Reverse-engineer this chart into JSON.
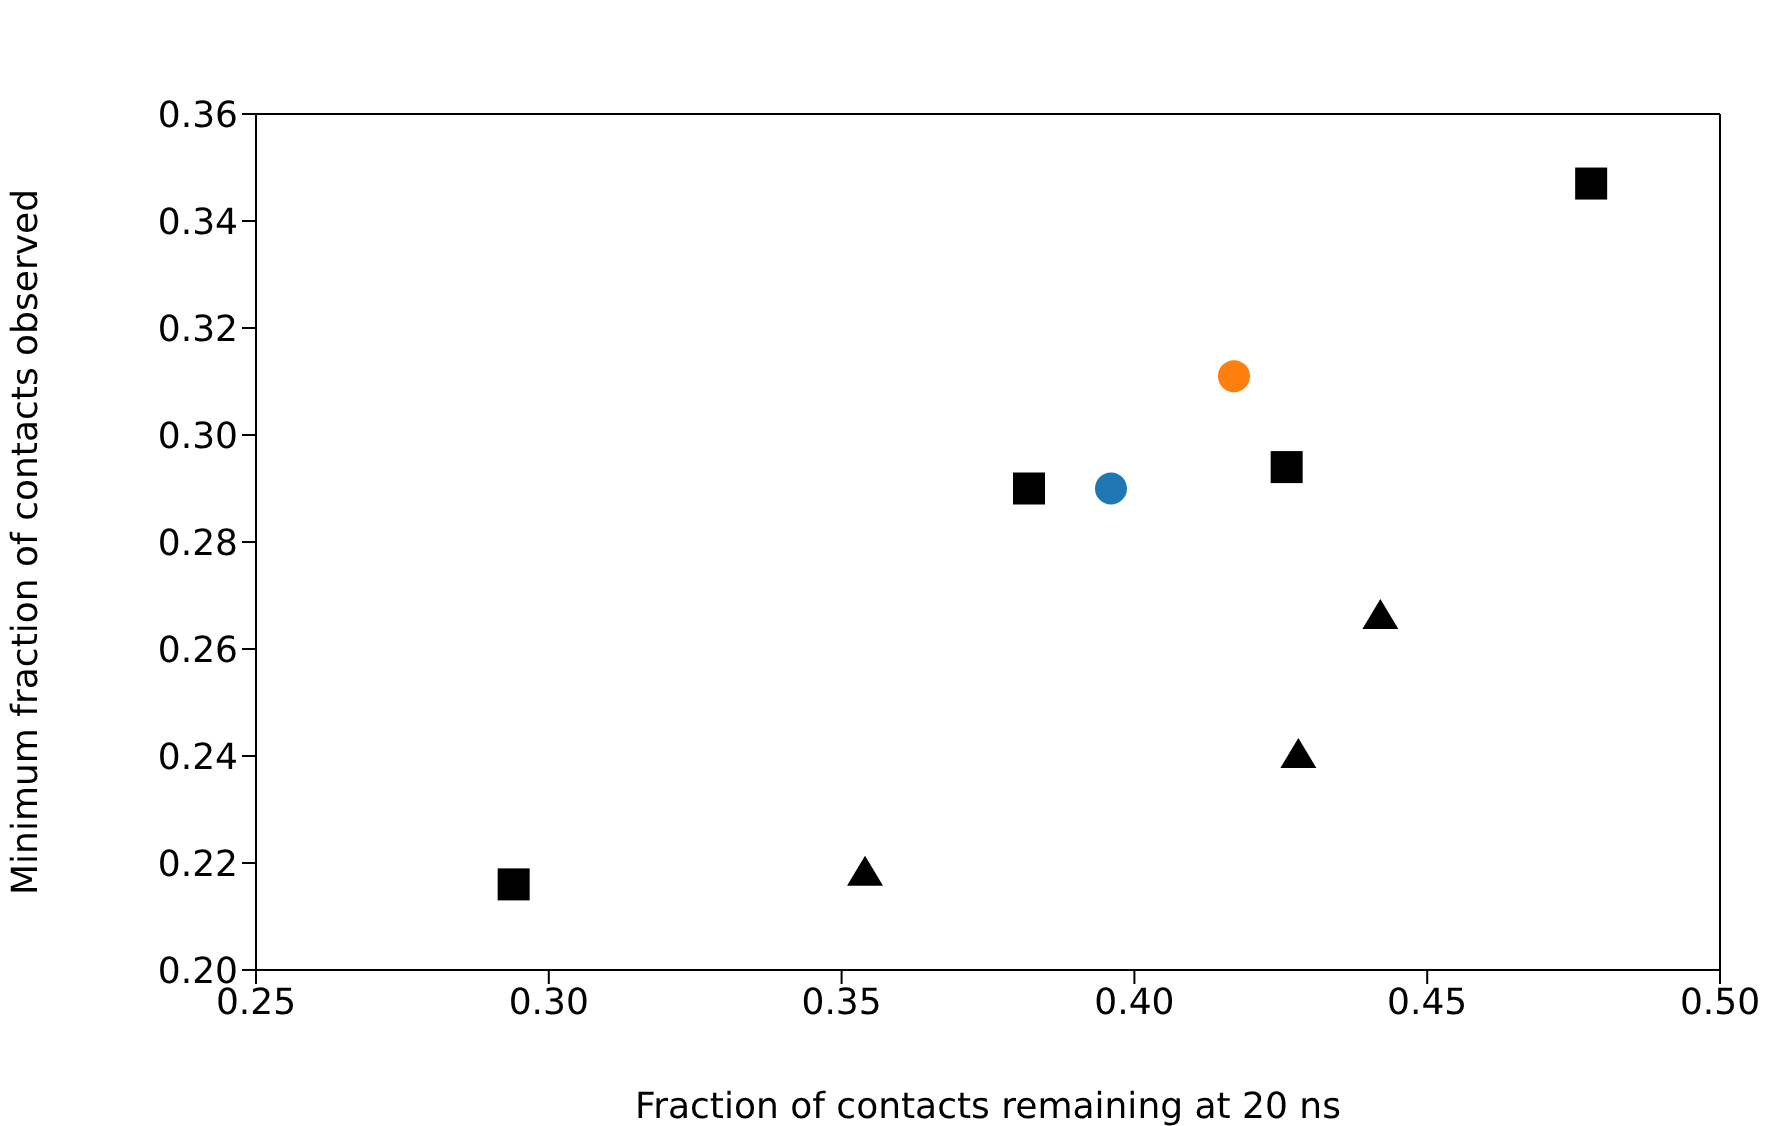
{
  "chart_data": {
    "type": "scatter",
    "xlabel": "Fraction of contacts remaining at 20 ns",
    "ylabel": "Minimum fraction of contacts observed",
    "xlim": [
      0.25,
      0.5
    ],
    "xticks": [
      {
        "value": 0.25,
        "label": "0.25"
      },
      {
        "value": 0.3,
        "label": "0.30"
      },
      {
        "value": 0.35,
        "label": "0.35"
      },
      {
        "value": 0.4,
        "label": "0.40"
      },
      {
        "value": 0.45,
        "label": "0.45"
      },
      {
        "value": 0.5,
        "label": "0.50"
      }
    ],
    "ylim": [
      0.2,
      0.36
    ],
    "yticks": [
      {
        "value": 0.2,
        "label": "0.20"
      },
      {
        "value": 0.22,
        "label": "0.22"
      },
      {
        "value": 0.24,
        "label": "0.24"
      },
      {
        "value": 0.26,
        "label": "0.26"
      },
      {
        "value": 0.28,
        "label": "0.28"
      },
      {
        "value": 0.3,
        "label": "0.30"
      },
      {
        "value": 0.32,
        "label": "0.32"
      },
      {
        "value": 0.34,
        "label": "0.34"
      },
      {
        "value": 0.36,
        "label": "0.36"
      }
    ],
    "series": [
      {
        "color": "#000000",
        "marker": "square",
        "x": [
          0.294,
          0.382,
          0.426,
          0.478
        ],
        "values": [
          0.216,
          0.29,
          0.294,
          0.347
        ]
      },
      {
        "color": "#000000",
        "marker": "triangle",
        "x": [
          0.354,
          0.428,
          0.442
        ],
        "values": [
          0.218,
          0.24,
          0.266
        ]
      },
      {
        "color": "#1f77b4",
        "marker": "circle",
        "x": [
          0.396
        ],
        "values": [
          0.29
        ]
      },
      {
        "color": "#ff7f0e",
        "marker": "circle",
        "x": [
          0.417
        ],
        "values": [
          0.311
        ]
      }
    ]
  }
}
